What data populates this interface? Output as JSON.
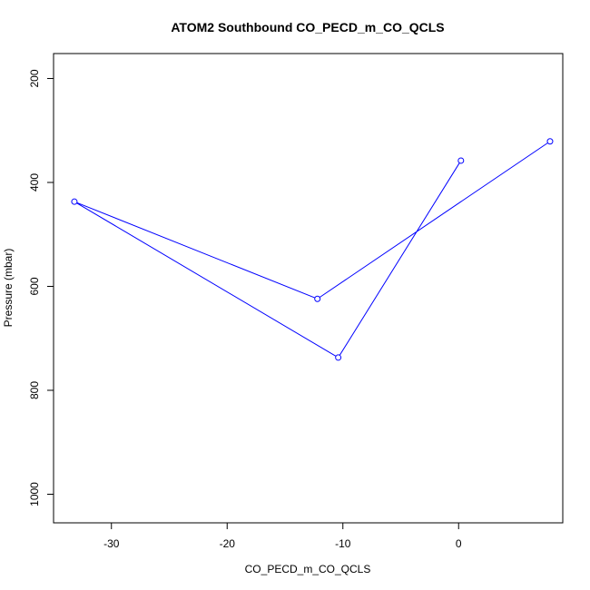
{
  "chart_data": {
    "type": "line",
    "title": "ATOM2 Southbound CO_PECD_m_CO_QCLS",
    "xlabel": "CO_PECD_m_CO_QCLS",
    "ylabel": "Pressure (mbar)",
    "xlim": [
      -35,
      9
    ],
    "ylim": [
      1055,
      152
    ],
    "y_reversed": true,
    "xticks": [
      -30,
      -20,
      -10,
      0
    ],
    "yticks": [
      200,
      400,
      600,
      800,
      1000
    ],
    "series": [
      {
        "color": "#0000ff",
        "marker": "open-circle",
        "points": [
          {
            "x": 0.2,
            "y": 358
          },
          {
            "x": -10.4,
            "y": 737
          },
          {
            "x": -33.2,
            "y": 437
          },
          {
            "x": -12.2,
            "y": 624
          },
          {
            "x": 7.9,
            "y": 321
          }
        ]
      }
    ],
    "grid": false,
    "legend": "none"
  }
}
